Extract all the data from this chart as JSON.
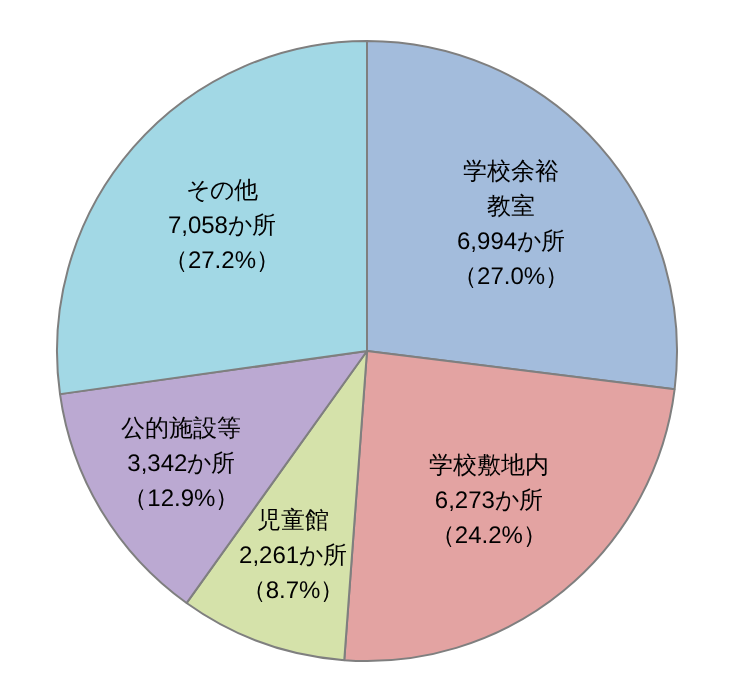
{
  "chart_data": {
    "type": "pie",
    "categories": [
      "学校余裕教室",
      "学校敷地内",
      "児童館",
      "公的施設等",
      "その他"
    ],
    "values": [
      6994,
      6273,
      2261,
      3342,
      7058
    ],
    "colors": [
      "#a3bcdc",
      "#e3a3a2",
      "#d5e2aa",
      "#bba9d2",
      "#a2d8e5"
    ],
    "value_labels": [
      "6,994か所（27.0%）",
      "6,273か所（24.2%）",
      "2,261か所（8.7%）",
      "3,342か所（12.9%）",
      "7,058か所（27.2%）"
    ]
  }
}
